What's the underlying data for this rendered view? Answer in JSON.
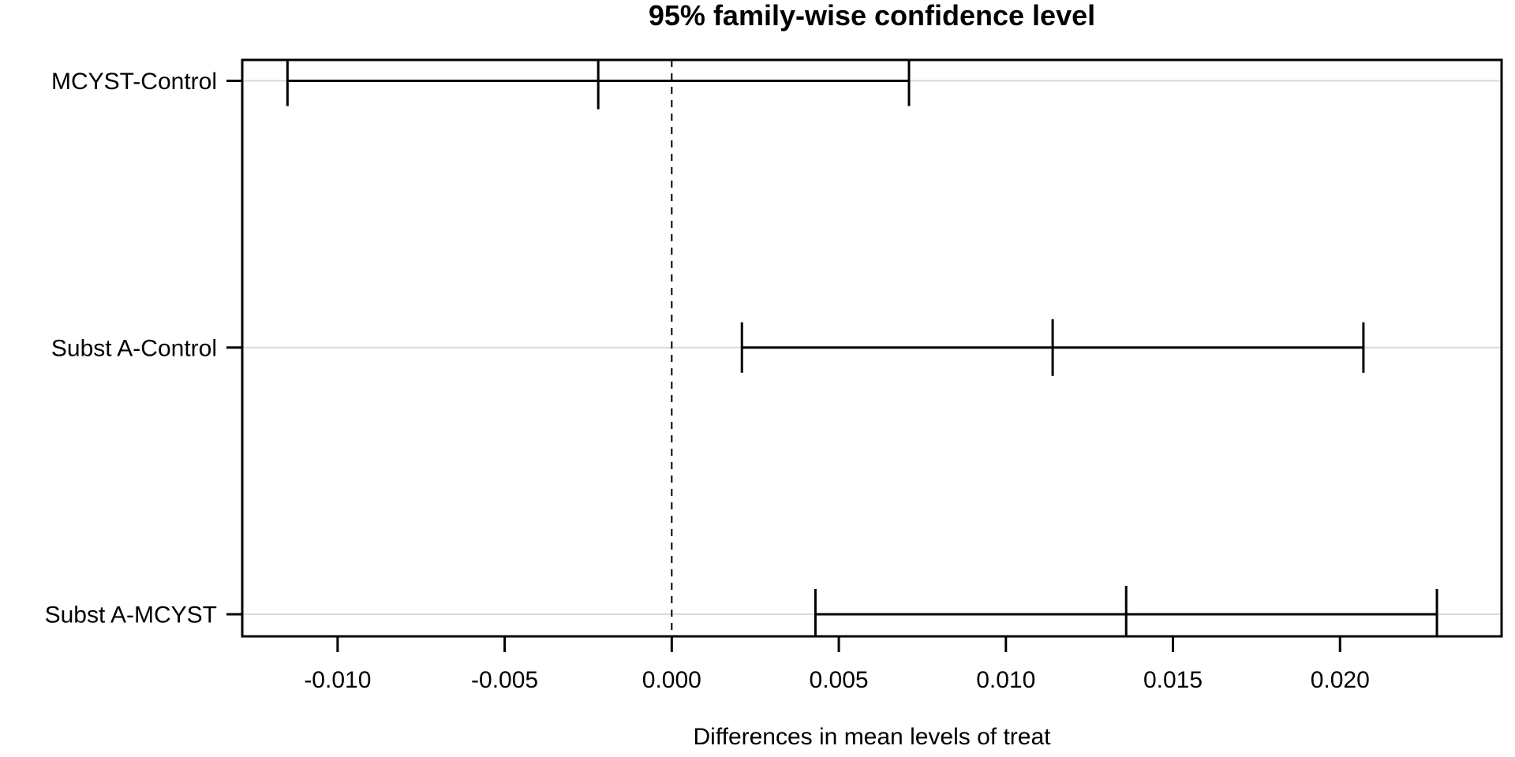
{
  "chart_data": {
    "type": "ci-interval",
    "title": "95% family-wise confidence level",
    "xlabel": "Differences in mean levels of treat",
    "ylabel": "",
    "categories": [
      "MCYST-Control",
      "Subst A-Control",
      "Subst A-MCYST"
    ],
    "intervals": [
      {
        "label": "MCYST-Control",
        "diff": -0.0022,
        "lwr": -0.0115,
        "upr": 0.0071
      },
      {
        "label": "Subst A-Control",
        "diff": 0.0114,
        "lwr": 0.0021,
        "upr": 0.0207
      },
      {
        "label": "Subst A-MCYST",
        "diff": 0.0136,
        "lwr": 0.0043,
        "upr": 0.0229
      }
    ],
    "x_ticks": [
      -0.01,
      -0.005,
      0.0,
      0.005,
      0.01,
      0.015,
      0.02
    ],
    "x_tick_labels": [
      "-0.010",
      "-0.005",
      "0.000",
      "0.005",
      "0.010",
      "0.015",
      "0.020"
    ],
    "xlim": [
      -0.012854,
      0.024835
    ],
    "zero_line_x": 0,
    "zero_line_style": "dashed",
    "grid": "horizontal-per-category",
    "legend_position": "none",
    "colors": {
      "line": "#000000",
      "grid": "#d9d9d9",
      "background": "#ffffff"
    }
  }
}
